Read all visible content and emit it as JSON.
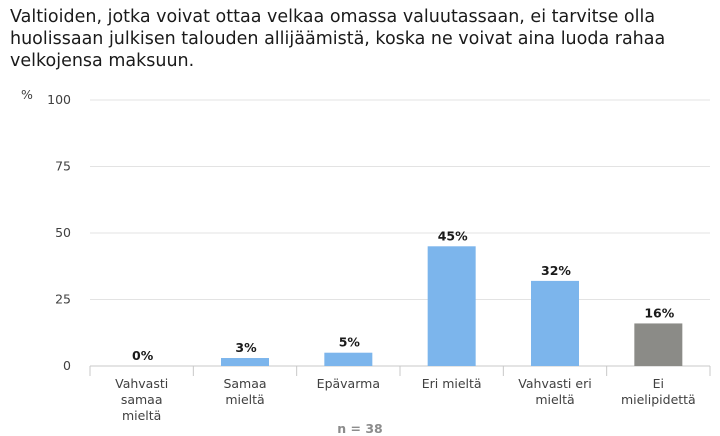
{
  "chart_data": {
    "type": "bar",
    "title": "Valtioiden, jotka voivat ottaa velkaa omassa valuutassaan, ei tarvitse olla huolissaan julkisen talouden allijäämistä, koska ne voivat aina luoda rahaa velkojensa maksuun.",
    "ylabel": "%",
    "xlabel": "",
    "ylim": [
      0,
      100
    ],
    "yticks": [
      0,
      25,
      50,
      75,
      100
    ],
    "grid": true,
    "categories": [
      [
        "Vahvasti",
        "samaa",
        "mieltä"
      ],
      [
        "Samaa",
        "mieltä"
      ],
      [
        "Epävarma"
      ],
      [
        "Eri mieltä"
      ],
      [
        "Vahvasti eri",
        "mieltä"
      ],
      [
        "Ei",
        "mielipidettä"
      ]
    ],
    "values": [
      0,
      3,
      5,
      45,
      32,
      16
    ],
    "data_labels": [
      "0%",
      "3%",
      "5%",
      "45%",
      "32%",
      "16%"
    ],
    "bar_colors": [
      "#7cb5ec",
      "#7cb5ec",
      "#7cb5ec",
      "#7cb5ec",
      "#7cb5ec",
      "#8b8b87"
    ],
    "note": "n = 38"
  }
}
